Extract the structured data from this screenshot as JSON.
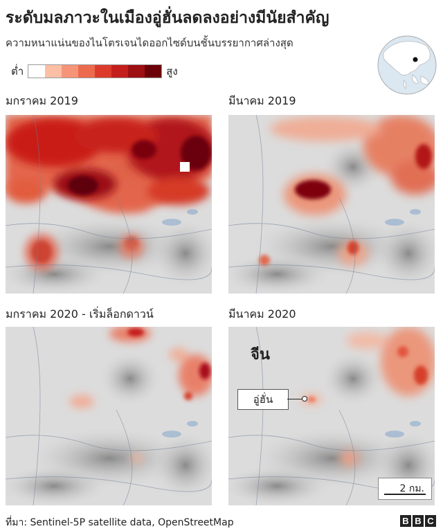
{
  "header": {
    "title": "ระดับมลภาวะในเมืองอู่ฮั่นลดลงอย่างมีนัยสำคัญ",
    "subtitle": "ความหนาแน่นของไนโตรเจนไดออกไซด์บนชั้นบรรยากาศล่างสุด"
  },
  "legend": {
    "low_label": "ต่ำ",
    "high_label": "สูง",
    "colors": [
      "#ffffff",
      "#fde3d8",
      "#fbbfa6",
      "#f59477",
      "#ec6a4e",
      "#dc3b2c",
      "#c41e1c",
      "#9e0f12",
      "#6b0008"
    ]
  },
  "panels": [
    {
      "label": "มกราคม 2019",
      "intensity": "very-high"
    },
    {
      "label": "มีนาคม 2019",
      "intensity": "medium"
    },
    {
      "label": "มกราคม 2020 - เริ่มล็อกดาวน์",
      "intensity": "low"
    },
    {
      "label": "มีนาคม 2020",
      "intensity": "low"
    }
  ],
  "map_labels": {
    "country": "จีน",
    "city": "อู่ฮั่น",
    "scale": "2 กม."
  },
  "footer": {
    "source": "ที่มา: Sentinel-5P satellite data, OpenStreetMap",
    "logo": [
      "B",
      "B",
      "C"
    ]
  },
  "colors": {
    "pollution_high": "#7a0010",
    "pollution_mid": "#d9361f",
    "pollution_low": "#f5a48a",
    "base_map": "#d9d9d9",
    "water": "#9fb6d0"
  }
}
